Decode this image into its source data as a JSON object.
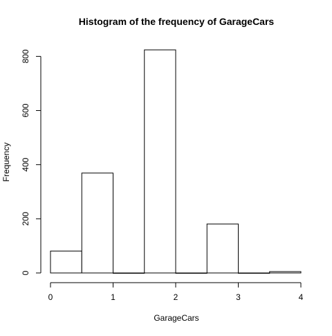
{
  "chart_data": {
    "type": "bar",
    "title": "Histogram of the frequency of GarageCars",
    "xlabel": "GarageCars",
    "ylabel": "Frequency",
    "bins": [
      {
        "start": 0.0,
        "end": 0.5,
        "value": 81
      },
      {
        "start": 0.5,
        "end": 1.0,
        "value": 369
      },
      {
        "start": 1.0,
        "end": 1.5,
        "value": 0
      },
      {
        "start": 1.5,
        "end": 2.0,
        "value": 824
      },
      {
        "start": 2.0,
        "end": 2.5,
        "value": 0
      },
      {
        "start": 2.5,
        "end": 3.0,
        "value": 181
      },
      {
        "start": 3.0,
        "end": 3.5,
        "value": 0
      },
      {
        "start": 3.5,
        "end": 4.0,
        "value": 5
      }
    ],
    "xlim": [
      0,
      4
    ],
    "ylim": [
      0,
      824
    ],
    "x_ticks": [
      0,
      1,
      2,
      3,
      4
    ],
    "x_tick_labels": [
      "0",
      "1",
      "2",
      "3",
      "4"
    ],
    "y_ticks": [
      0,
      200,
      400,
      600,
      800
    ],
    "y_tick_labels": [
      "0",
      "200",
      "400",
      "600",
      "800"
    ],
    "grid": false,
    "legend": "none",
    "colors": {
      "bar_fill": "#ffffff",
      "bar_stroke": "#000000",
      "axis": "#000000"
    }
  }
}
